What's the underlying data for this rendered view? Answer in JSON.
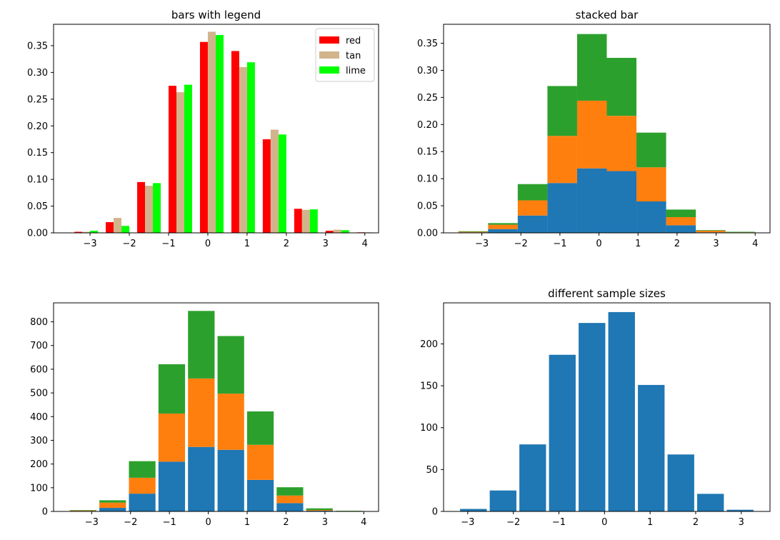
{
  "chart_data": [
    {
      "type": "bar",
      "title": "bars with legend",
      "xlabel": "",
      "ylabel": "",
      "bin_edges": [
        -3.6,
        -2.8,
        -2.0,
        -1.2,
        -0.4,
        0.4,
        1.2,
        2.0,
        2.8,
        3.6,
        4.4
      ],
      "xlim": [
        -3.93,
        4.35
      ],
      "ylim": [
        0,
        0.39
      ],
      "xticks": [
        "−3",
        "−2",
        "−1",
        "0",
        "1",
        "2",
        "3",
        "4"
      ],
      "xtick_values": [
        -3,
        -2,
        -1,
        0,
        1,
        2,
        3,
        4
      ],
      "yticks": [
        "0.00",
        "0.05",
        "0.10",
        "0.15",
        "0.20",
        "0.25",
        "0.30",
        "0.35"
      ],
      "ytick_values": [
        0,
        0.05,
        0.1,
        0.15,
        0.2,
        0.25,
        0.3,
        0.35
      ],
      "series": [
        {
          "name": "red",
          "color": "#ff0000",
          "values": [
            0.002,
            0.02,
            0.095,
            0.275,
            0.357,
            0.34,
            0.175,
            0.045,
            0.004,
            0.001
          ]
        },
        {
          "name": "tan",
          "color": "#d2b48c",
          "values": [
            0.002,
            0.028,
            0.088,
            0.263,
            0.376,
            0.31,
            0.193,
            0.043,
            0.006,
            0.001
          ]
        },
        {
          "name": "lime",
          "color": "#00ff00",
          "values": [
            0.004,
            0.013,
            0.093,
            0.277,
            0.37,
            0.319,
            0.184,
            0.044,
            0.005,
            0.0
          ]
        }
      ],
      "legend": {
        "position": "top-right",
        "entries": [
          "red",
          "tan",
          "lime"
        ]
      }
    },
    {
      "type": "bar",
      "stacked": true,
      "title": "stacked bar",
      "xlabel": "",
      "ylabel": "",
      "bin_edges": [
        -3.6,
        -2.84,
        -2.08,
        -1.32,
        -0.56,
        0.2,
        0.96,
        1.72,
        2.48,
        3.24,
        4.0
      ],
      "xlim": [
        -3.98,
        4.38
      ],
      "ylim": [
        0,
        0.385
      ],
      "xticks": [
        "−3",
        "−2",
        "−1",
        "0",
        "1",
        "2",
        "3",
        "4"
      ],
      "xtick_values": [
        -3,
        -2,
        -1,
        0,
        1,
        2,
        3,
        4
      ],
      "yticks": [
        "0.00",
        "0.05",
        "0.10",
        "0.15",
        "0.20",
        "0.25",
        "0.30",
        "0.35"
      ],
      "ytick_values": [
        0,
        0.05,
        0.1,
        0.15,
        0.2,
        0.25,
        0.3,
        0.35
      ],
      "series": [
        {
          "name": "blue",
          "color": "#1f77b4",
          "values": [
            0.001,
            0.007,
            0.032,
            0.092,
            0.119,
            0.114,
            0.058,
            0.014,
            0.001,
            0.0
          ]
        },
        {
          "name": "orange",
          "color": "#ff7f0e",
          "values": [
            0.001,
            0.008,
            0.028,
            0.087,
            0.125,
            0.102,
            0.063,
            0.015,
            0.003,
            0.001
          ]
        },
        {
          "name": "green",
          "color": "#2ca02c",
          "values": [
            0.001,
            0.003,
            0.03,
            0.092,
            0.123,
            0.107,
            0.064,
            0.014,
            0.001,
            0.001
          ]
        }
      ]
    },
    {
      "type": "bar",
      "stacked": true,
      "title": "",
      "xlabel": "",
      "ylabel": "",
      "bin_edges": [
        -3.6,
        -2.84,
        -2.08,
        -1.32,
        -0.56,
        0.2,
        0.96,
        1.72,
        2.48,
        3.24,
        4.0
      ],
      "rwidth": 0.9,
      "xlim": [
        -3.98,
        4.38
      ],
      "ylim": [
        0,
        880
      ],
      "xticks": [
        "−3",
        "−2",
        "−1",
        "0",
        "1",
        "2",
        "3",
        "4"
      ],
      "xtick_values": [
        -3,
        -2,
        -1,
        0,
        1,
        2,
        3,
        4
      ],
      "yticks": [
        "0",
        "100",
        "200",
        "300",
        "400",
        "500",
        "600",
        "700",
        "800"
      ],
      "ytick_values": [
        0,
        100,
        200,
        300,
        400,
        500,
        600,
        700,
        800
      ],
      "series": [
        {
          "name": "blue",
          "color": "#1f77b4",
          "values": [
            2,
            15,
            75,
            210,
            272,
            260,
            133,
            35,
            3,
            1
          ]
        },
        {
          "name": "orange",
          "color": "#ff7f0e",
          "values": [
            2,
            22,
            67,
            203,
            289,
            237,
            148,
            32,
            3,
            1
          ]
        },
        {
          "name": "green",
          "color": "#2ca02c",
          "values": [
            2,
            10,
            70,
            208,
            285,
            243,
            141,
            35,
            7,
            1
          ]
        }
      ]
    },
    {
      "type": "bar",
      "title": "different sample sizes",
      "xlabel": "",
      "ylabel": "",
      "bin_edges": [
        -3.2,
        -2.55,
        -1.9,
        -1.25,
        -0.6,
        0.05,
        0.7,
        1.35,
        2.0,
        2.65,
        3.3
      ],
      "rwidth": 0.9,
      "xlim": [
        -3.53,
        3.63
      ],
      "ylim": [
        0,
        249
      ],
      "xticks": [
        "−3",
        "−2",
        "−1",
        "0",
        "1",
        "2",
        "3"
      ],
      "xtick_values": [
        -3,
        -2,
        -1,
        0,
        1,
        2,
        3
      ],
      "yticks": [
        "0",
        "50",
        "100",
        "150",
        "200"
      ],
      "ytick_values": [
        0,
        50,
        100,
        150,
        200
      ],
      "series": [
        {
          "name": "blue",
          "color": "#1f77b4",
          "values": [
            3,
            25,
            80,
            187,
            225,
            238,
            151,
            68,
            21,
            2
          ]
        }
      ]
    }
  ]
}
